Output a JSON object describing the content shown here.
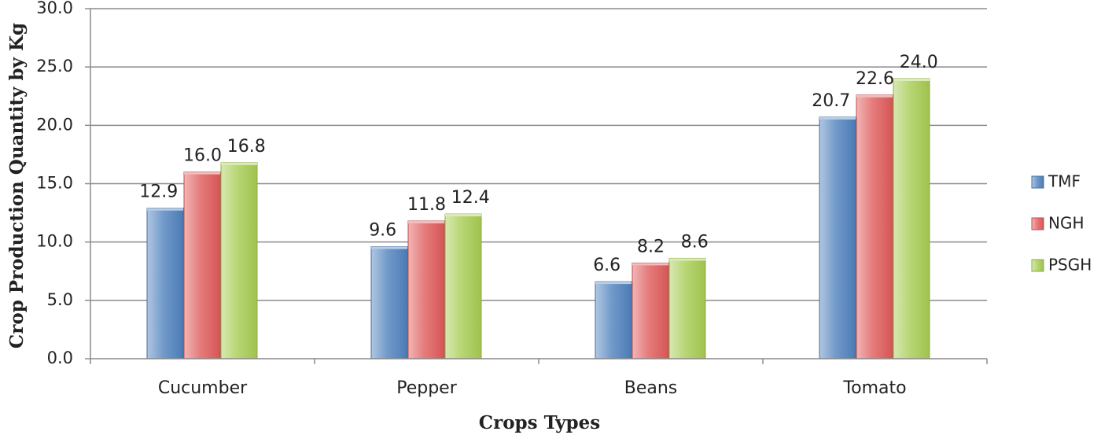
{
  "chart_data": {
    "type": "bar",
    "title": "",
    "xlabel": "Crops Types",
    "ylabel": "Crop Production Quantity by Kg",
    "categories": [
      "Cucumber",
      "Pepper",
      "Beans",
      "Tomato"
    ],
    "series": [
      {
        "name": "TMF",
        "values": [
          12.9,
          9.6,
          6.6,
          20.7
        ],
        "color": "#4f81bd"
      },
      {
        "name": "NGH",
        "values": [
          16.0,
          11.8,
          8.2,
          22.6
        ],
        "color": "#e05a5a"
      },
      {
        "name": "PSGH",
        "values": [
          16.8,
          12.4,
          8.6,
          24.0
        ],
        "color": "#a6cc52"
      }
    ],
    "ylim": [
      0,
      30
    ],
    "yticks": [
      0,
      5,
      10,
      15,
      20,
      25,
      30
    ],
    "tick_format_decimals": 1,
    "label_format_decimals": 1,
    "grid": true,
    "legend_position": "right"
  }
}
